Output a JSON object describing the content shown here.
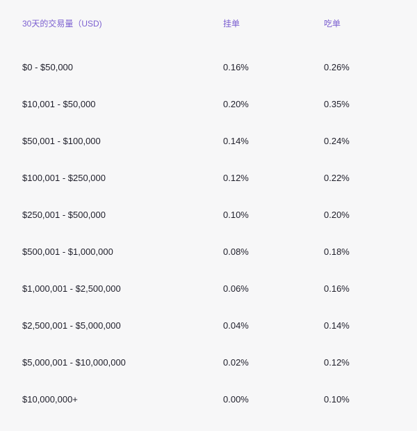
{
  "table": {
    "headers": {
      "volume": "30天的交易量（USD)",
      "maker": "挂单",
      "taker": "吃单"
    },
    "rows": [
      {
        "volume": "$0 - $50,000",
        "maker": "0.16%",
        "taker": "0.26%"
      },
      {
        "volume": "$10,001 - $50,000",
        "maker": "0.20%",
        "taker": "0.35%"
      },
      {
        "volume": "$50,001 - $100,000",
        "maker": "0.14%",
        "taker": "0.24%"
      },
      {
        "volume": "$100,001 - $250,000",
        "maker": "0.12%",
        "taker": "0.22%"
      },
      {
        "volume": "$250,001 - $500,000",
        "maker": "0.10%",
        "taker": "0.20%"
      },
      {
        "volume": "$500,001 - $1,000,000",
        "maker": "0.08%",
        "taker": "0.18%"
      },
      {
        "volume": "$1,000,001 - $2,500,000",
        "maker": "0.06%",
        "taker": "0.16%"
      },
      {
        "volume": "$2,500,001 - $5,000,000",
        "maker": "0.04%",
        "taker": "0.14%"
      },
      {
        "volume": "$5,000,001 - $10,000,000",
        "maker": "0.02%",
        "taker": "0.12%"
      },
      {
        "volume": "$10,000,000+",
        "maker": "0.00%",
        "taker": "0.10%"
      }
    ]
  },
  "colors": {
    "header_text": "#7b5fd0",
    "body_text": "#1e1e2a",
    "background": "#f7f7f8"
  }
}
